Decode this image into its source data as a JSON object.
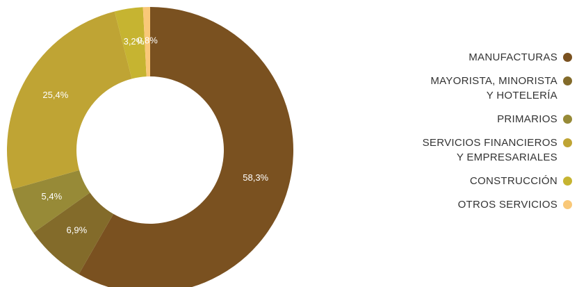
{
  "chart_data": {
    "type": "pie",
    "donut": true,
    "title": "",
    "legend_position": "right",
    "categories": [
      "MANUFACTURAS",
      "MAYORISTA, MINORISTA Y HOTELERÍA",
      "PRIMARIOS",
      "SERVICIOS FINANCIEROS Y EMPRESARIALES",
      "CONSTRUCCIÓN",
      "OTROS SERVICIOS"
    ],
    "values": [
      58.3,
      6.9,
      5.4,
      25.4,
      3.2,
      0.8
    ],
    "value_labels": [
      "58,3%",
      "6,9%",
      "5,4%",
      "25,4%",
      "3,2%",
      "0,8%"
    ],
    "colors": [
      "#7a5120",
      "#836b2a",
      "#978a37",
      "#bfa434",
      "#c6b431",
      "#f9c878"
    ]
  },
  "legend": {
    "items": [
      {
        "lines": [
          "MANUFACTURAS"
        ],
        "color": "#7a5120"
      },
      {
        "lines": [
          "MAYORISTA, MINORISTA",
          "Y HOTELERÍA"
        ],
        "color": "#836b2a"
      },
      {
        "lines": [
          "PRIMARIOS"
        ],
        "color": "#978a37"
      },
      {
        "lines": [
          "SERVICIOS FINANCIEROS",
          "Y EMPRESARIALES"
        ],
        "color": "#bfa434"
      },
      {
        "lines": [
          "CONSTRUCCIÓN"
        ],
        "color": "#c6b431"
      },
      {
        "lines": [
          "OTROS SERVICIOS"
        ],
        "color": "#f9c878"
      }
    ]
  }
}
